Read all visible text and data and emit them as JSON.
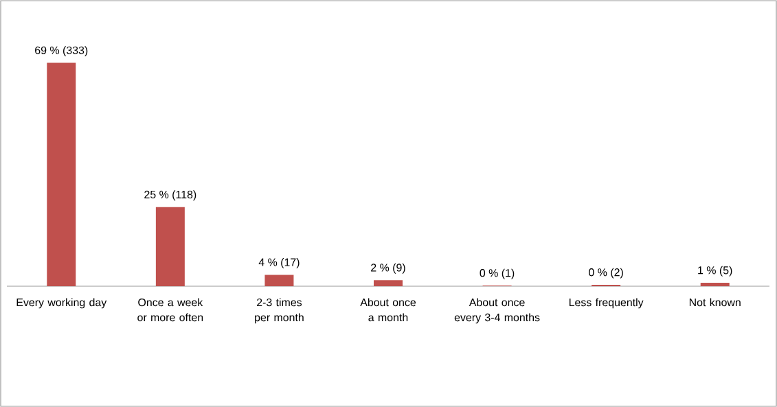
{
  "chart_data": {
    "type": "bar",
    "categories": [
      "Every working day",
      "Once a week or more often",
      "2-3 times per month",
      "About once a month",
      "About once every 3-4 months",
      "Less frequently",
      "Not known"
    ],
    "values": [
      333,
      118,
      17,
      9,
      1,
      2,
      5
    ],
    "value_labels": [
      "69 % (333)",
      "25 % (118)",
      "4 % (17)",
      "2 % (9)",
      "0 % (1)",
      "0 % (2)",
      "1 % (5)"
    ],
    "color": "#c0504d"
  }
}
